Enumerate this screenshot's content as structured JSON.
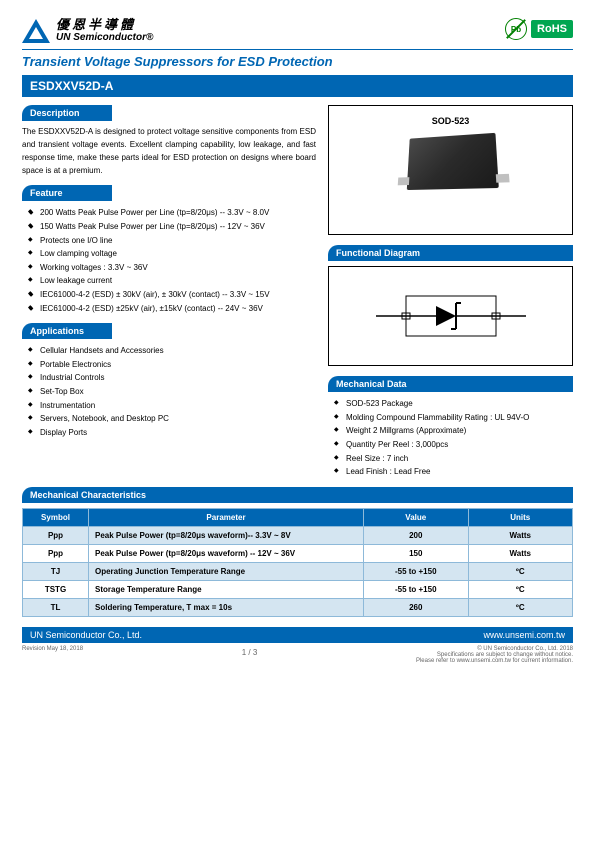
{
  "header": {
    "company_cn": "優恩半導體",
    "company_en": "UN Semiconductor®",
    "pb_text": "Pb",
    "rohs_text": "RoHS"
  },
  "main_title": "Transient Voltage Suppressors for ESD Protection",
  "part_number": "ESDXXV52D-A",
  "sections": {
    "description": {
      "title": "Description",
      "text": "The ESDXXV52D-A is designed to protect voltage sensitive components from ESD and transient voltage events. Excellent clamping capability, low leakage, and fast response time, make these parts ideal for ESD protection on designs where board space is at a premium."
    },
    "feature": {
      "title": "Feature",
      "items": [
        "200 Watts Peak Pulse Power per Line (tp=8/20μs) -- 3.3V ~ 8.0V",
        "150 Watts Peak Pulse Power per Line (tp=8/20μs) -- 12V ~ 36V",
        "Protects one I/O line",
        "Low clamping voltage",
        "Working voltages : 3.3V ~ 36V",
        "Low leakage current",
        "IEC61000-4-2 (ESD) ± 30kV (air), ± 30kV (contact) -- 3.3V ~ 15V",
        "IEC61000-4-2 (ESD) ±25kV (air), ±15kV (contact) -- 24V ~ 36V"
      ]
    },
    "applications": {
      "title": "Applications",
      "items": [
        "Cellular Handsets and Accessories",
        "Portable Electronics",
        "Industrial Controls",
        "Set-Top Box",
        "Instrumentation",
        "Servers, Notebook, and Desktop PC",
        "Display Ports"
      ]
    },
    "package_label": "SOD-523",
    "functional_diagram": {
      "title": "Functional Diagram"
    },
    "mechanical_data": {
      "title": "Mechanical Data",
      "items": [
        "SOD-523 Package",
        "Molding Compound Flammability Rating : UL 94V-O",
        "Weight 2 Millgrams (Approximate)",
        "Quantity Per Reel : 3,000pcs",
        "Reel Size : 7 inch",
        "Lead Finish : Lead Free"
      ]
    },
    "mech_char": {
      "title": "Mechanical Characteristics",
      "headers": [
        "Symbol",
        "Parameter",
        "Value",
        "Units"
      ],
      "rows": [
        {
          "symbol": "Ppp",
          "param": "Peak Pulse Power (tp=8/20μs waveform)-- 3.3V ~ 8V",
          "value": "200",
          "units": "Watts",
          "alt": true
        },
        {
          "symbol": "Ppp",
          "param": "Peak Pulse Power (tp=8/20μs waveform) -- 12V ~ 36V",
          "value": "150",
          "units": "Watts",
          "alt": false
        },
        {
          "symbol": "TJ",
          "param": "Operating Junction Temperature Range",
          "value": "-55 to +150",
          "units": "ºC",
          "alt": true
        },
        {
          "symbol": "TSTG",
          "param": "Storage Temperature Range",
          "value": "-55 to +150",
          "units": "ºC",
          "alt": false
        },
        {
          "symbol": "TL",
          "param": "Soldering Temperature, T max = 10s",
          "value": "260",
          "units": "ºC",
          "alt": true
        }
      ]
    }
  },
  "footer": {
    "company": "UN Semiconductor Co., Ltd.",
    "website": "www.unsemi.com.tw",
    "revision": "Revision May 18, 2018",
    "page": "1 / 3",
    "copyright": "© UN Semiconductor Co., Ltd.   2018",
    "note1": "Specifications are subject to change without notice.",
    "note2": "Please refer to www.unsemi.com.tw for current information."
  },
  "styling": {
    "primary_color": "#0066b3",
    "alt_row_color": "#d4e5f1",
    "border_color": "#8db9d9",
    "rohs_color": "#00a651"
  }
}
